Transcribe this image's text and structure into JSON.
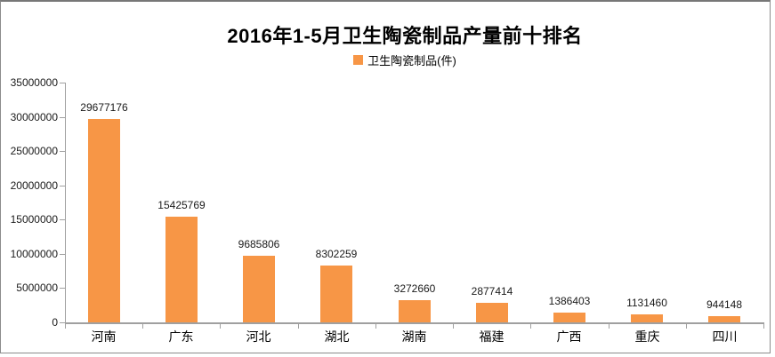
{
  "title": "2016年1-5月卫生陶瓷制品产量前十排名",
  "legend": {
    "label": "卫生陶瓷制品(件)"
  },
  "colors": {
    "bar": "#F79646",
    "axis": "#A0A0A0",
    "text": "#000000",
    "frame_border": "#8C8C8C",
    "background": "#FFFFFF"
  },
  "chart_data": {
    "type": "bar",
    "title": "2016年1-5月卫生陶瓷制品产量前十排名",
    "series_name": "卫生陶瓷制品(件)",
    "categories": [
      "河南",
      "广东",
      "河北",
      "湖北",
      "湖南",
      "福建",
      "广西",
      "重庆",
      "四川"
    ],
    "values": [
      29677176,
      15425769,
      9685806,
      8302259,
      3272660,
      2877414,
      1386403,
      1131460,
      944148
    ],
    "xlabel": "",
    "ylabel": "",
    "ylim": [
      0,
      35000000
    ],
    "ytick_interval": 5000000,
    "ytick_labels": [
      "0",
      "5000000",
      "10000000",
      "15000000",
      "20000000",
      "25000000",
      "30000000",
      "35000000"
    ],
    "grid": false,
    "data_labels": true,
    "legend_position": "top-center",
    "bar_color": "#F79646"
  }
}
